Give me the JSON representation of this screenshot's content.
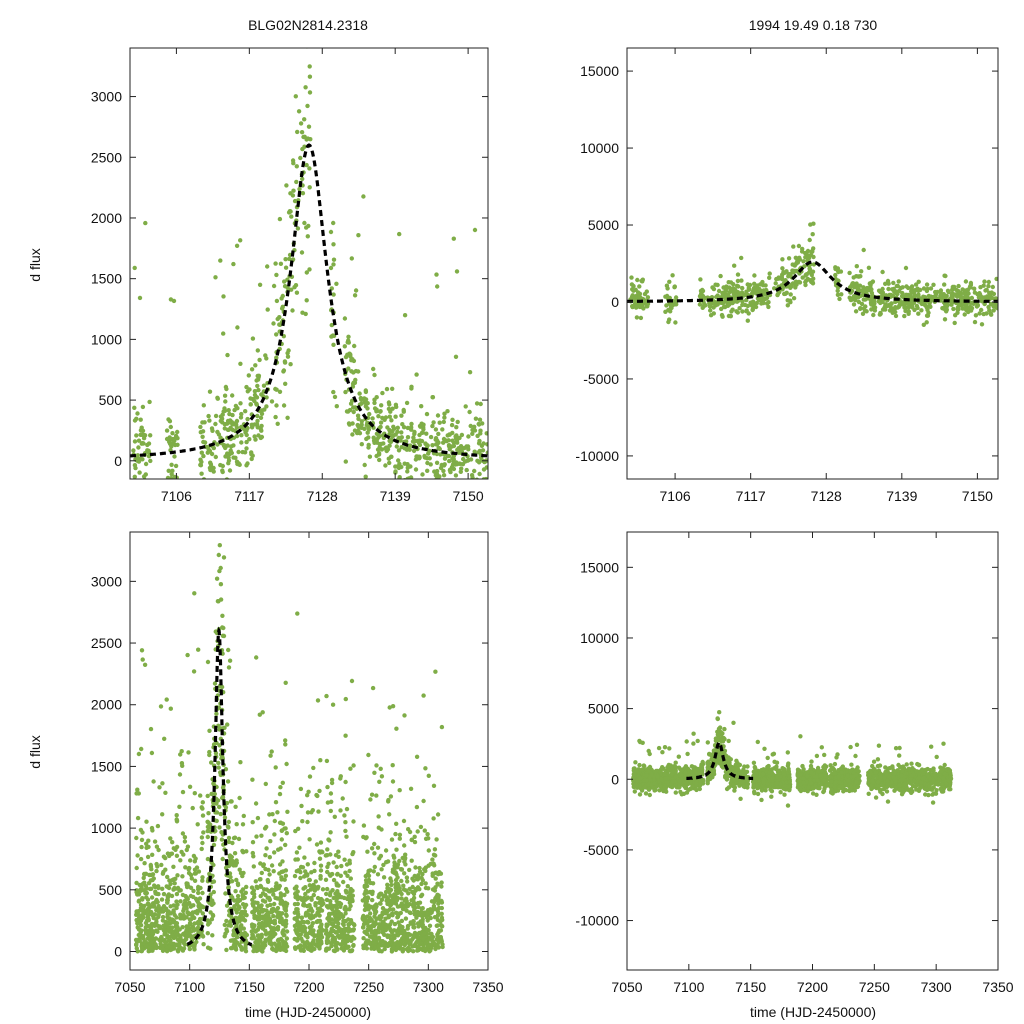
{
  "figure": {
    "title_left": "BLG02N2814.2318",
    "title_right": "1994  19.49  0.18  730",
    "ylabel_top": "d flux",
    "ylabel_bottom": "d flux",
    "xlabel_bottom_left": "time (HJD-2450000)",
    "xlabel_bottom_right": "time (HJD-2450000)"
  },
  "colors": {
    "points": "#7fad47",
    "model": "#000000",
    "frame": "#222222"
  },
  "chart_data": [
    {
      "type": "scatter",
      "panel": "top-left",
      "title": "BLG02N2814.2318",
      "xlabel": "",
      "ylabel": "d flux",
      "xlim": [
        7099,
        7153
      ],
      "ylim": [
        -150,
        3400
      ],
      "xticks": [
        7106,
        7117,
        7128,
        7139,
        7150
      ],
      "yticks": [
        0,
        500,
        1000,
        1500,
        2000,
        2500,
        3000
      ],
      "series": [
        {
          "name": "photometry",
          "kind": "points",
          "segments": [
            [
              7099.5,
              7102.2
            ],
            [
              7104.5,
              7106.2
            ],
            [
              7109.6,
              7119.8
            ],
            [
              7120.4,
              7126.2
            ],
            [
              7129.3,
              7130.2
            ],
            [
              7131.4,
              7153
            ]
          ]
        },
        {
          "name": "model",
          "kind": "dashed-line",
          "t0": 7126.0,
          "peak": 2600,
          "tE_hw": 3.4
        }
      ]
    },
    {
      "type": "scatter",
      "panel": "top-right",
      "title": "1994  19.49  0.18  730",
      "xlabel": "",
      "ylabel": "",
      "xlim": [
        7099,
        7153
      ],
      "ylim": [
        -11500,
        16500
      ],
      "xticks": [
        7106,
        7117,
        7128,
        7139,
        7150
      ],
      "yticks": [
        -10000,
        -5000,
        0,
        5000,
        10000,
        15000
      ],
      "series": [
        {
          "name": "photometry",
          "kind": "points"
        },
        {
          "name": "model",
          "kind": "dashed-line",
          "t0": 7126.0,
          "peak": 2600,
          "tE_hw": 3.4
        }
      ]
    },
    {
      "type": "scatter",
      "panel": "bottom-left",
      "xlabel": "time (HJD-2450000)",
      "ylabel": "d flux",
      "xlim": [
        7050,
        7350
      ],
      "ylim": [
        -150,
        3400
      ],
      "xticks": [
        7050,
        7100,
        7150,
        7200,
        7250,
        7300,
        7350
      ],
      "yticks": [
        0,
        500,
        1000,
        1500,
        2000,
        2500,
        3000
      ],
      "series": [
        {
          "name": "photometry",
          "kind": "points",
          "segments": [
            [
              7055,
              7112
            ],
            [
              7115,
              7148
            ],
            [
              7152,
              7182
            ],
            [
              7188,
              7212
            ],
            [
              7214,
              7238
            ],
            [
              7245,
              7312
            ]
          ]
        },
        {
          "name": "model",
          "kind": "dashed-line",
          "t0": 7124.5,
          "peak": 2600,
          "tE_hw": 4.0,
          "xrange": [
            7098,
            7152
          ]
        }
      ]
    },
    {
      "type": "scatter",
      "panel": "bottom-right",
      "xlabel": "time (HJD-2450000)",
      "ylabel": "",
      "xlim": [
        7050,
        7350
      ],
      "ylim": [
        -13500,
        17500
      ],
      "xticks": [
        7050,
        7100,
        7150,
        7200,
        7250,
        7300,
        7350
      ],
      "yticks": [
        -10000,
        -5000,
        0,
        5000,
        10000,
        15000
      ],
      "series": [
        {
          "name": "photometry",
          "kind": "points"
        },
        {
          "name": "model",
          "kind": "dashed-line",
          "t0": 7124.5,
          "peak": 2600,
          "tE_hw": 4.0,
          "xrange": [
            7098,
            7152
          ]
        }
      ]
    }
  ]
}
